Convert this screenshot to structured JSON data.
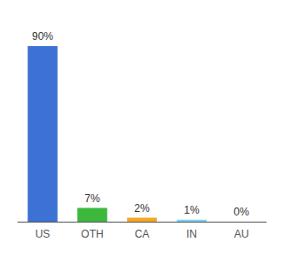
{
  "chart_data": {
    "type": "bar",
    "categories": [
      "US",
      "OTH",
      "CA",
      "IN",
      "AU"
    ],
    "values": [
      90,
      7,
      2,
      1,
      0
    ],
    "value_labels": [
      "90%",
      "7%",
      "2%",
      "1%",
      "0%"
    ],
    "colors": [
      "#3d72d4",
      "#3db83d",
      "#f5a623",
      "#7dd4f0",
      "#d0d0d0"
    ],
    "ylim": [
      0,
      100
    ],
    "data_labels": true,
    "grid": false,
    "tick_labels": "x"
  }
}
